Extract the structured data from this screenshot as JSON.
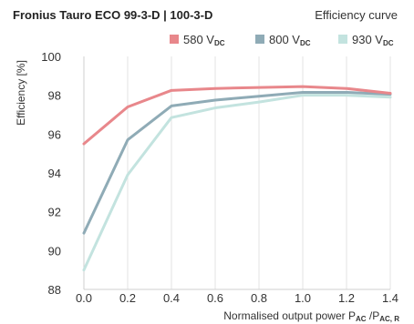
{
  "chart_data": {
    "type": "line",
    "title": "Fronius Tauro ECO 99-3-D | 100-3-D",
    "subtitle": "Efficiency curve",
    "ylabel": "Efficiency [%]",
    "xlabel": {
      "prefix": "Normalised output power P",
      "sub1": "AC",
      "middle": " /P",
      "sub2": "AC, R"
    },
    "xlim": [
      0.0,
      1.4
    ],
    "ylim": [
      88,
      100
    ],
    "x_ticks": [
      "0.0",
      "0.2",
      "0.4",
      "0.6",
      "0.8",
      "1.0",
      "1.2",
      "1.4"
    ],
    "y_ticks": [
      "88",
      "90",
      "92",
      "94",
      "96",
      "98",
      "100"
    ],
    "grid": "vertical",
    "legend_position": "top-right",
    "x": [
      0.0,
      0.2,
      0.4,
      0.6,
      0.8,
      1.0,
      1.2,
      1.4
    ],
    "series": [
      {
        "name": "580 V",
        "name_sub": "DC",
        "color": "#e8878b",
        "values": [
          95.5,
          97.4,
          98.25,
          98.35,
          98.4,
          98.45,
          98.35,
          98.1
        ]
      },
      {
        "name": "800 V",
        "name_sub": "DC",
        "color": "#8fabb6",
        "values": [
          90.9,
          95.7,
          97.45,
          97.75,
          97.95,
          98.15,
          98.15,
          98.05
        ]
      },
      {
        "name": "930 V",
        "name_sub": "DC",
        "color": "#c3e3df",
        "values": [
          89.0,
          93.9,
          96.85,
          97.35,
          97.65,
          98.0,
          98.0,
          97.9
        ]
      }
    ]
  }
}
